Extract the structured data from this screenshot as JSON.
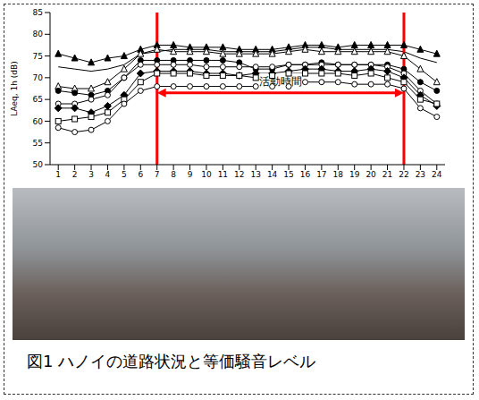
{
  "chart_data": {
    "type": "line",
    "y_label": "LAeq, 1h (dB)",
    "x": [
      1,
      2,
      3,
      4,
      5,
      6,
      7,
      8,
      9,
      10,
      11,
      12,
      13,
      14,
      15,
      16,
      17,
      18,
      19,
      20,
      21,
      22,
      23,
      24
    ],
    "xlim": [
      0.5,
      24.5
    ],
    "xticks": [
      1,
      2,
      3,
      4,
      5,
      6,
      7,
      8,
      9,
      10,
      11,
      12,
      13,
      14,
      15,
      16,
      17,
      18,
      19,
      20,
      21,
      22,
      23,
      24
    ],
    "ylim": [
      50,
      85
    ],
    "yticks": [
      50,
      55,
      60,
      65,
      70,
      75,
      80,
      85
    ],
    "grid": false,
    "tick_labels": true,
    "series": [
      {
        "color": "#000000",
        "marker": "triangle",
        "values": [
          75.5,
          74.5,
          73.5,
          74.5,
          75,
          76.5,
          77.5,
          77.5,
          77,
          77,
          77,
          76.5,
          76.5,
          76.5,
          77,
          77.5,
          77.5,
          77,
          77.5,
          77.5,
          77.5,
          77.5,
          76.5,
          75.5
        ]
      },
      {
        "color": "#000000",
        "marker": "none",
        "values": [
          72.5,
          72,
          71.5,
          72,
          73,
          75.5,
          76,
          76.5,
          76.5,
          76.5,
          76,
          76,
          76,
          76,
          76.5,
          77,
          77,
          76.5,
          76.5,
          76.5,
          76.5,
          76,
          74.5,
          73.5
        ]
      },
      {
        "color": "#000000",
        "marker": "triangle_open",
        "values": [
          68,
          67.5,
          67.5,
          69,
          72,
          75.5,
          76.5,
          76,
          76,
          76,
          75.5,
          75.5,
          75.5,
          75.5,
          76,
          76.5,
          76,
          76,
          76,
          76,
          76,
          75,
          72,
          69
        ]
      },
      {
        "color": "#000000",
        "marker": "circle",
        "values": [
          67,
          66.5,
          66,
          67,
          70,
          74,
          74,
          74,
          74,
          74,
          74,
          73.5,
          72,
          72,
          73,
          73,
          73.5,
          73,
          73,
          73,
          73,
          72,
          69,
          67
        ]
      },
      {
        "color": "#000000",
        "marker": "circle_open",
        "values": [
          64,
          64,
          65,
          66,
          70,
          73,
          73,
          73,
          73,
          72.5,
          72.5,
          72.5,
          72.5,
          72.5,
          73,
          73,
          73,
          73,
          73,
          73,
          72.5,
          71,
          67,
          64
        ]
      },
      {
        "color": "#000000",
        "marker": "diamond",
        "values": [
          63,
          63,
          62,
          63.5,
          66,
          71,
          71.5,
          71.5,
          71.5,
          71,
          71,
          70.5,
          71,
          71,
          71.5,
          72,
          72,
          71.5,
          71.5,
          72,
          71.5,
          70,
          66,
          63.5
        ]
      },
      {
        "color": "#000000",
        "marker": "square_open",
        "values": [
          60,
          60.5,
          61,
          62,
          65,
          69,
          71,
          71,
          71,
          70.5,
          70.5,
          70.5,
          70,
          70.5,
          71,
          71,
          71,
          71,
          70.5,
          71,
          70,
          69,
          65,
          64
        ]
      },
      {
        "color": "#000000",
        "marker": "circle_open",
        "values": [
          58.5,
          57.5,
          58,
          60,
          64,
          67,
          68,
          68,
          68,
          68,
          68,
          68,
          68,
          68,
          68,
          69,
          69,
          69,
          68.5,
          68.5,
          68.5,
          67.5,
          63,
          61
        ]
      }
    ],
    "annotation": {
      "text": "活動時間",
      "x_start": 7,
      "x_end": 22,
      "y": 66.5,
      "color": "#ff0000"
    }
  },
  "caption": "図1 ハノイの道路状況と等価騒音レベル"
}
